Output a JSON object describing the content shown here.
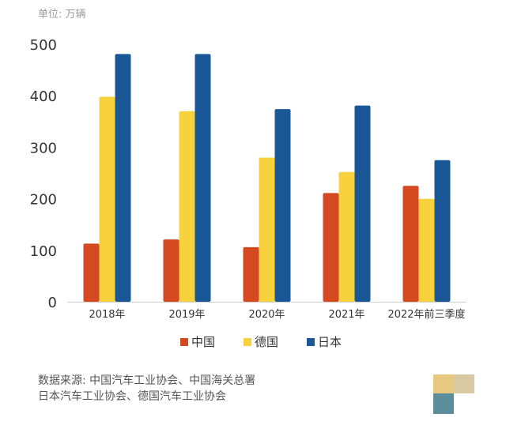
{
  "unit_label": "单位: 万辆",
  "source_line1": "数据来源: 中国汽车工业协会、中国海关总署",
  "source_line2": "日本汽车工业协会、德国汽车工业协会",
  "chart_data": {
    "type": "bar",
    "categories": [
      "2018年",
      "2019年",
      "2020年",
      "2021年",
      "2022年前三季度"
    ],
    "series": [
      {
        "name": "中国",
        "color": "#d4491f",
        "values": [
          113,
          121,
          106,
          211,
          225
        ]
      },
      {
        "name": "德国",
        "color": "#f7d23c",
        "values": [
          398,
          370,
          280,
          252,
          200
        ]
      },
      {
        "name": "日本",
        "color": "#1a5796",
        "values": [
          481,
          481,
          374,
          381,
          275
        ]
      }
    ],
    "yticks": [
      0,
      100,
      200,
      300,
      400,
      500
    ],
    "ylim": [
      0,
      500
    ],
    "legend_position": "bottom",
    "grid": false
  }
}
